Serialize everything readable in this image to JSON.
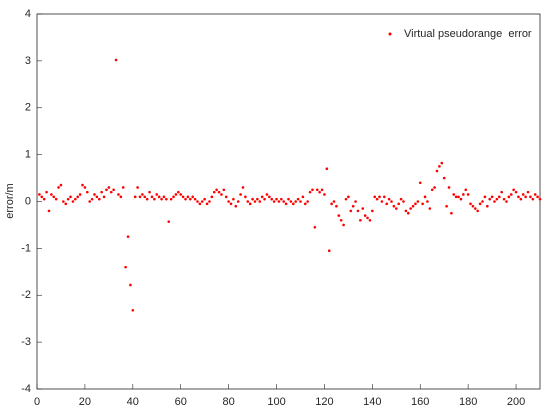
{
  "chart_data": {
    "type": "scatter",
    "ylabel": "error/m",
    "legend": "upper right",
    "xlim": [
      0,
      210
    ],
    "ylim": [
      -4,
      4
    ],
    "xticks": [
      0,
      20,
      40,
      60,
      80,
      100,
      120,
      140,
      160,
      180,
      200
    ],
    "yticks": [
      -4,
      -3,
      -2,
      -1,
      0,
      1,
      2,
      3,
      4
    ],
    "series": [
      {
        "name": "Virtual pseudorange  error",
        "color": "#ff0000",
        "x": [
          1,
          2,
          3,
          4,
          5,
          6,
          7,
          8,
          9,
          10,
          11,
          12,
          13,
          14,
          15,
          16,
          17,
          18,
          19,
          20,
          21,
          22,
          23,
          24,
          25,
          26,
          27,
          28,
          29,
          30,
          31,
          32,
          33,
          34,
          35,
          36,
          37,
          38,
          39,
          40,
          41,
          42,
          43,
          44,
          45,
          46,
          47,
          48,
          49,
          50,
          51,
          52,
          53,
          54,
          55,
          56,
          57,
          58,
          59,
          60,
          61,
          62,
          63,
          64,
          65,
          66,
          67,
          68,
          69,
          70,
          71,
          72,
          73,
          74,
          75,
          76,
          77,
          78,
          79,
          80,
          81,
          82,
          83,
          84,
          85,
          86,
          87,
          88,
          89,
          90,
          91,
          92,
          93,
          94,
          95,
          96,
          97,
          98,
          99,
          100,
          101,
          102,
          103,
          104,
          105,
          106,
          107,
          108,
          109,
          110,
          111,
          112,
          113,
          114,
          115,
          116,
          117,
          118,
          119,
          120,
          121,
          122,
          123,
          124,
          125,
          126,
          127,
          128,
          129,
          130,
          131,
          132,
          133,
          134,
          135,
          136,
          137,
          138,
          139,
          140,
          141,
          142,
          143,
          144,
          145,
          146,
          147,
          148,
          149,
          150,
          151,
          152,
          153,
          154,
          155,
          156,
          157,
          158,
          159,
          160,
          161,
          162,
          163,
          164,
          165,
          166,
          167,
          168,
          169,
          170,
          171,
          172,
          173,
          174,
          175,
          176,
          177,
          178,
          179,
          180,
          181,
          182,
          183,
          184,
          185,
          186,
          187,
          188,
          189,
          190,
          191,
          192,
          193,
          194,
          195,
          196,
          197,
          198,
          199,
          200,
          201,
          202,
          203,
          204,
          205,
          206,
          207,
          208,
          209,
          210
        ],
        "values": [
          0.15,
          0.1,
          0.05,
          0.2,
          -0.2,
          0.15,
          0.1,
          0.05,
          0.3,
          0.35,
          0.0,
          -0.05,
          0.05,
          0.1,
          0.0,
          0.05,
          0.1,
          0.15,
          0.35,
          0.3,
          0.2,
          0.0,
          0.05,
          0.15,
          0.1,
          0.05,
          0.2,
          0.1,
          0.25,
          0.3,
          0.2,
          0.25,
          3.02,
          0.15,
          0.1,
          0.3,
          -1.4,
          -0.75,
          -1.78,
          -2.32,
          0.1,
          0.3,
          0.1,
          0.15,
          0.1,
          0.05,
          0.2,
          0.1,
          0.05,
          0.15,
          0.1,
          0.05,
          0.1,
          0.05,
          -0.43,
          0.05,
          0.1,
          0.15,
          0.2,
          0.15,
          0.1,
          0.05,
          0.1,
          0.05,
          0.1,
          0.05,
          0.0,
          -0.05,
          0.0,
          0.05,
          -0.05,
          0.0,
          0.1,
          0.2,
          0.25,
          0.2,
          0.15,
          0.25,
          0.1,
          0.0,
          -0.05,
          0.05,
          -0.1,
          0.0,
          0.15,
          0.3,
          0.1,
          0.0,
          -0.05,
          0.05,
          0.0,
          0.05,
          0.0,
          0.1,
          0.05,
          0.15,
          0.1,
          0.05,
          0.0,
          0.05,
          0.0,
          0.05,
          0.0,
          -0.05,
          0.05,
          0.0,
          -0.05,
          0.0,
          0.05,
          0.0,
          0.1,
          -0.05,
          0.0,
          0.2,
          0.25,
          -0.55,
          0.25,
          0.2,
          0.25,
          0.15,
          0.7,
          -1.05,
          -0.05,
          0.0,
          -0.1,
          -0.3,
          -0.4,
          -0.5,
          0.05,
          0.1,
          -0.2,
          -0.1,
          0.0,
          -0.2,
          -0.4,
          -0.15,
          -0.3,
          -0.35,
          -0.4,
          -0.2,
          0.1,
          0.05,
          0.1,
          0.0,
          0.1,
          -0.05,
          0.05,
          0.0,
          -0.1,
          -0.15,
          -0.05,
          0.05,
          0.0,
          -0.2,
          -0.25,
          -0.15,
          -0.1,
          -0.05,
          0.0,
          0.4,
          -0.05,
          0.1,
          0.0,
          -0.15,
          0.25,
          0.3,
          0.65,
          0.75,
          0.82,
          0.5,
          -0.1,
          0.3,
          -0.25,
          0.15,
          0.1,
          0.1,
          0.05,
          0.15,
          0.25,
          0.15,
          -0.05,
          -0.1,
          -0.15,
          -0.2,
          -0.05,
          0.0,
          0.1,
          -0.1,
          0.05,
          0.1,
          0.0,
          0.05,
          0.1,
          0.2,
          0.05,
          0.0,
          0.1,
          0.15,
          0.25,
          0.2,
          0.1,
          0.05,
          0.15,
          0.1,
          0.2,
          0.1,
          0.05,
          0.15,
          0.1,
          0.05
        ]
      }
    ]
  }
}
